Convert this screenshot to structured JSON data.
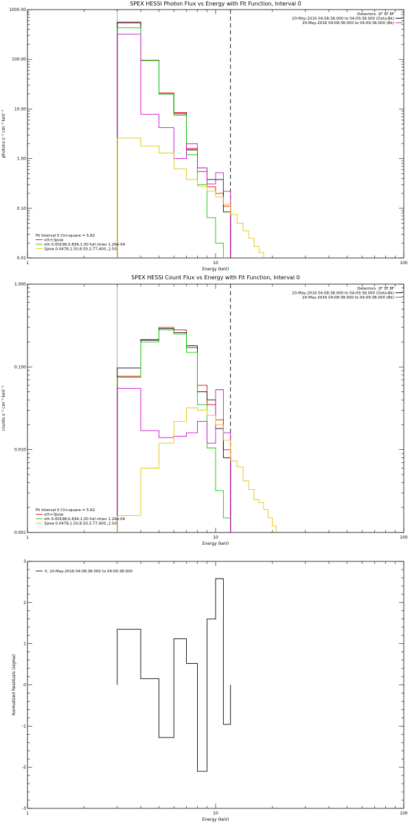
{
  "chart_data": [
    {
      "type": "line",
      "title": "SPEX HESSI Photon Flux vs Energy with Fit Function, Interval 0",
      "xlabel": "Energy (keV)",
      "ylabel": "photons s⁻¹ cm⁻² keV⁻¹",
      "x_scale": "log",
      "y_scale": "log",
      "xlim": [
        1,
        100
      ],
      "ylim": [
        0.01,
        1000
      ],
      "x_ticks": [
        {
          "value": 1,
          "label": "1"
        },
        {
          "value": 10,
          "label": "10"
        },
        {
          "value": 100,
          "label": "100"
        }
      ],
      "y_ticks": [
        {
          "value": 0.01,
          "label": "0.01"
        },
        {
          "value": 0.1,
          "label": "0.10"
        },
        {
          "value": 1,
          "label": "1.00"
        },
        {
          "value": 10,
          "label": "10.00"
        },
        {
          "value": 100,
          "label": "100.00"
        },
        {
          "value": 1000,
          "label": "1000.00"
        }
      ],
      "vlines": [
        {
          "x": 3.0,
          "style": "dotted"
        },
        {
          "x": 12.0,
          "style": "dashed"
        }
      ],
      "info_right": [
        "Detectors: 1F 3F 8F",
        "20-May-2016 04:08:38.000 to 04:09:38.000 (Data-Bk)",
        "20-May-2016 04:08:38.000 to 04:09:38.000 (Bk)"
      ],
      "info_right_marks": [
        "#000000",
        "#cc00cc"
      ],
      "legend_title": "Fit Interval 0   Chi-square = 5.62",
      "legend": [
        {
          "label": "vth+3pow",
          "color": "#e00000"
        },
        {
          "label": "vth 0.00198,0.834,1.00  full chian 1.26e-04",
          "color": "#00cc00"
        },
        {
          "label": "3pow 0.0478,1.50,8.50,3.77,400.,2.50",
          "color": "#e8c000"
        }
      ],
      "edges": [
        3,
        4,
        5,
        6,
        7,
        8,
        9,
        10,
        11,
        12,
        13,
        14,
        15,
        16,
        17,
        18,
        19,
        20
      ],
      "series": [
        {
          "color": "#e00000",
          "values": [
            540,
            96,
            21,
            8.5,
            1.6,
            0.55,
            0.27,
            0.2,
            0.11,
            null,
            null,
            null,
            null,
            null,
            null,
            null,
            null
          ]
        },
        {
          "color": "#000000",
          "values": [
            560,
            95,
            20,
            8.0,
            1.5,
            0.65,
            0.38,
            0.38,
            0.085,
            null,
            null,
            null,
            null,
            null,
            null,
            null,
            null
          ]
        },
        {
          "color": "#00cc00",
          "values": [
            430,
            95,
            20,
            7.5,
            1.2,
            0.3,
            0.065,
            0.02,
            null,
            null,
            null,
            null,
            null,
            null,
            null,
            null,
            null
          ]
        },
        {
          "color": "#cc00cc",
          "values": [
            320,
            7.8,
            4.2,
            1.0,
            2.0,
            0.65,
            0.31,
            0.52,
            0.22,
            null,
            null,
            null,
            null,
            null,
            null,
            null,
            null
          ]
        },
        {
          "color": "#e8c000",
          "values": [
            2.6,
            1.8,
            1.3,
            0.62,
            0.38,
            0.28,
            0.22,
            0.17,
            0.12,
            0.075,
            0.05,
            0.035,
            0.025,
            0.017,
            0.013,
            0.01,
            0.01
          ]
        }
      ]
    },
    {
      "type": "line",
      "title": "SPEX HESSI Count Flux vs Energy with Fit Function, Interval 0",
      "xlabel": "Energy (keV)",
      "ylabel": "counts s⁻¹ cm⁻² keV⁻¹",
      "x_scale": "log",
      "y_scale": "log",
      "xlim": [
        1,
        100
      ],
      "ylim": [
        0.001,
        1
      ],
      "x_ticks": [
        {
          "value": 1,
          "label": "1"
        },
        {
          "value": 10,
          "label": "10"
        },
        {
          "value": 100,
          "label": "100"
        }
      ],
      "y_ticks": [
        {
          "value": 0.001,
          "label": "0.001"
        },
        {
          "value": 0.01,
          "label": "0.010"
        },
        {
          "value": 0.1,
          "label": "0.100"
        },
        {
          "value": 1,
          "label": "1.000"
        }
      ],
      "vlines": [
        {
          "x": 3.0,
          "style": "dotted"
        },
        {
          "x": 12.0,
          "style": "dashed"
        }
      ],
      "info_right": [
        "Detectors: 1F 3F 8F",
        "20-May-2016 04:08:38.000 to 04:09:38.000 (Data-Bk)",
        "20-May-2016 04:08:38.000 to 04:09:38.000 (Bk)"
      ],
      "info_right_marks": [
        "#000000",
        "#cc00cc"
      ],
      "legend_title": "Fit Interval 0   Chi-square = 5.62",
      "legend": [
        {
          "label": "vth+3pow",
          "color": "#e00000"
        },
        {
          "label": "vth 0.00198,0.834,1.00  full chian 1.26e-04",
          "color": "#00cc00"
        },
        {
          "label": "3pow 0.0478,1.50,8.50,3.77,400.,2.50",
          "color": "#e8c000"
        }
      ],
      "edges": [
        3,
        4,
        5,
        6,
        7,
        8,
        9,
        10,
        11,
        12,
        13,
        14,
        15,
        16,
        17,
        18,
        19,
        20,
        21,
        22
      ],
      "series": [
        {
          "color": "#e00000",
          "values": [
            0.077,
            0.215,
            0.3,
            0.28,
            0.17,
            0.06,
            0.035,
            0.023,
            0.01,
            null,
            null,
            null,
            null,
            null,
            null,
            null,
            null,
            null,
            null
          ]
        },
        {
          "color": "#000000",
          "values": [
            0.097,
            0.21,
            0.29,
            0.26,
            0.18,
            0.05,
            0.04,
            0.018,
            0.008,
            null,
            null,
            null,
            null,
            null,
            null,
            null,
            null,
            null,
            null
          ]
        },
        {
          "color": "#00cc00",
          "values": [
            0.075,
            0.2,
            0.28,
            0.25,
            0.15,
            0.035,
            0.0105,
            0.0032,
            0.0015,
            null,
            null,
            null,
            null,
            null,
            null,
            null,
            null,
            null,
            null
          ]
        },
        {
          "color": "#cc00cc",
          "values": [
            0.055,
            0.017,
            0.014,
            0.0145,
            0.016,
            0.022,
            0.012,
            0.053,
            0.016,
            null,
            null,
            null,
            null,
            null,
            null,
            null,
            null,
            null,
            null
          ]
        },
        {
          "color": "#e8c000",
          "values": [
            0.0016,
            0.006,
            0.012,
            0.022,
            0.032,
            0.03,
            0.026,
            0.02,
            0.013,
            0.0073,
            0.0062,
            0.0042,
            0.0033,
            0.0025,
            0.0023,
            0.0019,
            0.0015,
            0.0012,
            0.001
          ]
        }
      ]
    },
    {
      "type": "line",
      "title": "",
      "xlabel": "Energy (keV)",
      "ylabel": "Normalized Residuals (sigma)",
      "x_scale": "log",
      "y_scale": "linear",
      "xlim": [
        1,
        100
      ],
      "ylim": [
        -3,
        3
      ],
      "x_ticks": [
        {
          "value": 1,
          "label": "1"
        },
        {
          "value": 10,
          "label": "10"
        },
        {
          "value": 100,
          "label": "100"
        }
      ],
      "y_ticks": [
        {
          "value": -3,
          "label": "-3"
        },
        {
          "value": -2,
          "label": "-2"
        },
        {
          "value": -1,
          "label": "-1"
        },
        {
          "value": 0,
          "label": "0"
        },
        {
          "value": 1,
          "label": "1"
        },
        {
          "value": 2,
          "label": "2"
        },
        {
          "value": 3,
          "label": "3"
        }
      ],
      "vlines": [],
      "info_right": [],
      "legend_title": "",
      "legend": [
        {
          "label": "0, 20-May-2016 04:08:38.000 to 04:09:38.000",
          "color": "#000000"
        }
      ],
      "edges": [
        3,
        4,
        5,
        6,
        7,
        8,
        9,
        10,
        11,
        12
      ],
      "series": [
        {
          "color": "#000000",
          "values": [
            1.35,
            0.15,
            -1.28,
            1.12,
            0.52,
            -2.1,
            1.6,
            2.58,
            -0.96
          ]
        }
      ]
    }
  ]
}
